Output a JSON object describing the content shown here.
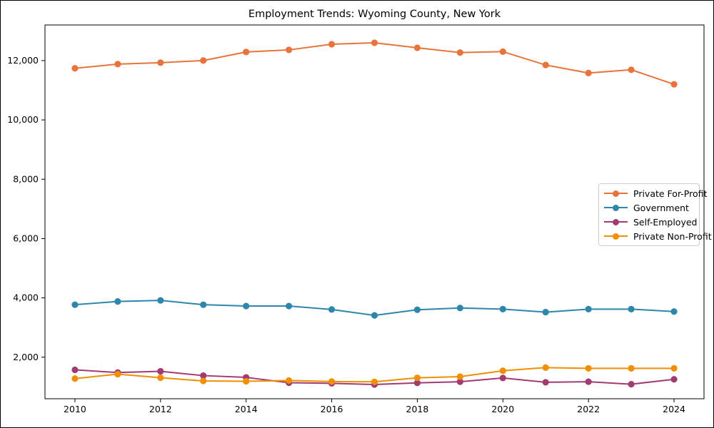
{
  "title": "Employment Trends: Wyoming County, New York",
  "chart_data": {
    "type": "line",
    "title": "Employment Trends: Wyoming County, New York",
    "xlabel": "",
    "ylabel": "",
    "grid": false,
    "legend_position": "center right",
    "x": [
      2010,
      2011,
      2012,
      2013,
      2014,
      2015,
      2016,
      2017,
      2018,
      2019,
      2020,
      2021,
      2022,
      2023,
      2024
    ],
    "series": [
      {
        "name": "Private For-Profit",
        "color": "#E8743B",
        "values": [
          11740,
          11880,
          11930,
          12000,
          12290,
          12360,
          12550,
          12600,
          12430,
          12270,
          12300,
          11850,
          11580,
          11690,
          11200
        ]
      },
      {
        "name": "Government",
        "color": "#2E86AB",
        "values": [
          3770,
          3880,
          3915,
          3770,
          3725,
          3725,
          3610,
          3410,
          3600,
          3660,
          3620,
          3520,
          3620,
          3620,
          3540
        ]
      },
      {
        "name": "Self-Employed",
        "color": "#A23B72",
        "values": [
          1575,
          1485,
          1525,
          1380,
          1320,
          1140,
          1120,
          1080,
          1135,
          1175,
          1300,
          1155,
          1175,
          1090,
          1255
        ]
      },
      {
        "name": "Private Non-Profit",
        "color": "#F18F01",
        "values": [
          1280,
          1430,
          1310,
          1200,
          1190,
          1215,
          1180,
          1170,
          1305,
          1345,
          1545,
          1650,
          1625,
          1625,
          1625
        ]
      }
    ],
    "xlim": [
      2009.3,
      2024.7
    ],
    "ylim": [
      600,
      13200
    ],
    "xticks": [
      2010,
      2012,
      2014,
      2016,
      2018,
      2020,
      2022,
      2024
    ],
    "xtick_labels": [
      "2010",
      "2012",
      "2014",
      "2016",
      "2018",
      "2020",
      "2022",
      "2024"
    ],
    "yticks": [
      2000,
      4000,
      6000,
      8000,
      10000,
      12000
    ],
    "ytick_labels": [
      "2,000",
      "4,000",
      "6,000",
      "8,000",
      "10,000",
      "12,000"
    ]
  }
}
